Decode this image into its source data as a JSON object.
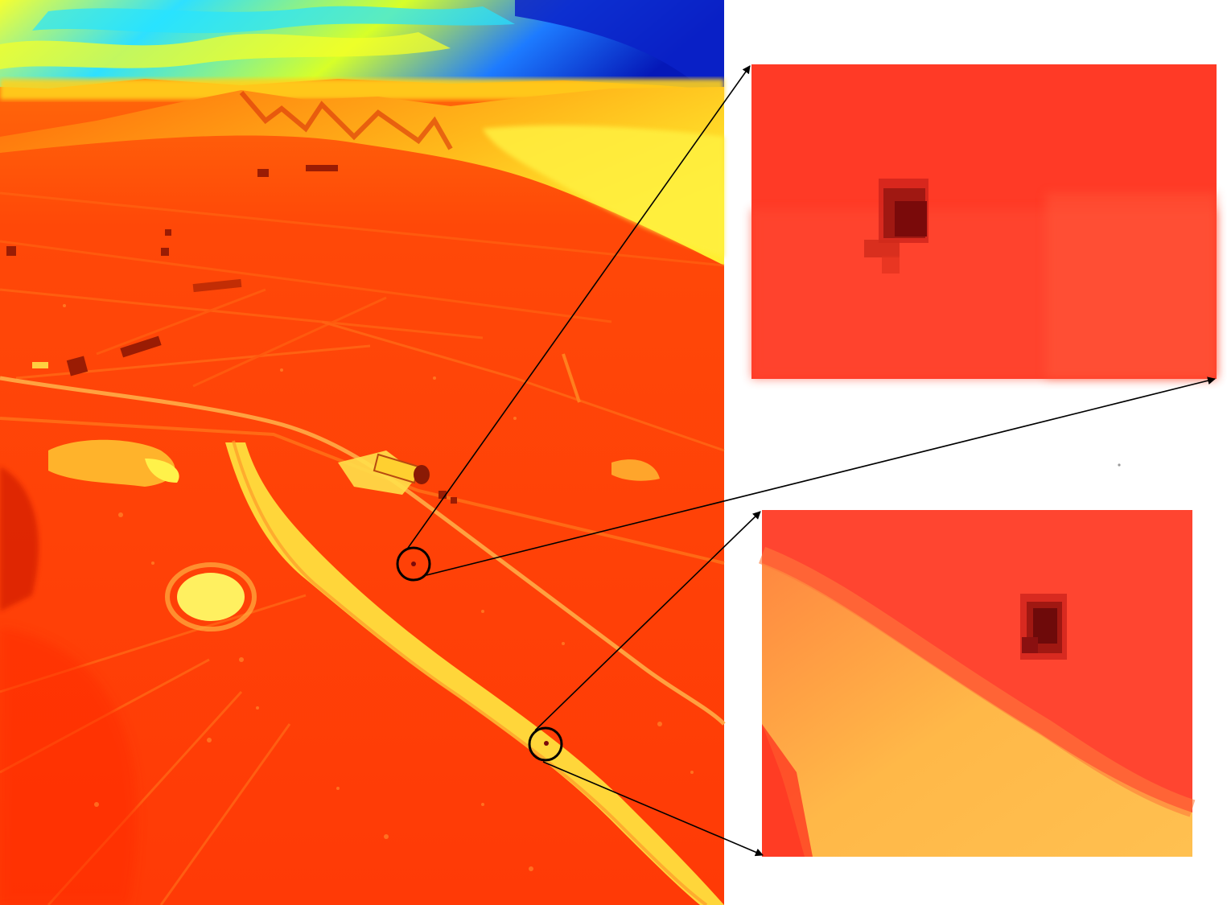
{
  "image": {
    "description_kind": "thermal false-color aerial photograph",
    "palette": {
      "sky_dark": "#0a2fe0",
      "sky_cyan": "#19d7ff",
      "hot_yellow": "#ffe21a",
      "warm_orange": "#ff8a10",
      "field_red": "#ff3d0a",
      "shadow_dark": "#8a0e05",
      "target_dark": "#7a0a0a",
      "zoom_bg_top": "#ff3a26",
      "zoom_bg_bottom": "#ff5a3c",
      "zoom_sand": "#ffb040"
    }
  },
  "markers": [
    {
      "name": "target-1",
      "icon": "circle-marker-icon"
    },
    {
      "name": "target-2",
      "icon": "circle-marker-icon"
    }
  ],
  "zoom_panels": [
    {
      "name": "zoom-panel-top",
      "content": "target-1"
    },
    {
      "name": "zoom-panel-bottom",
      "content": "target-2"
    }
  ]
}
